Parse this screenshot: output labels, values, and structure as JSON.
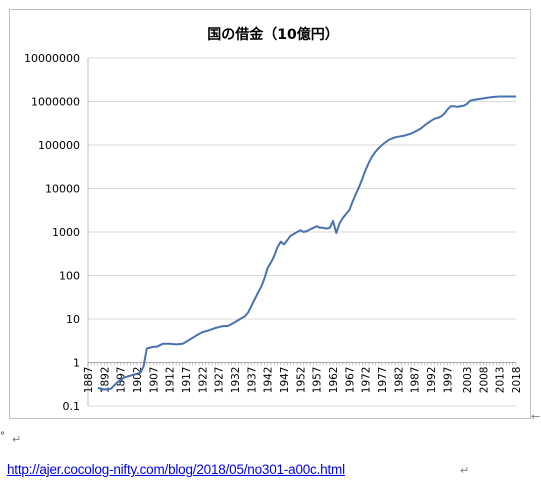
{
  "chart_data": {
    "type": "line",
    "title": "国の借金（10億円）",
    "y_scale": "log",
    "ylim": [
      0.1,
      10000000
    ],
    "y_tick_labels": [
      "10000000",
      "1000000",
      "100000",
      "10000",
      "1000",
      "100",
      "10",
      "1",
      "0.1"
    ],
    "y_tick_values": [
      10000000,
      1000000,
      100000,
      10000,
      1000,
      100,
      10,
      1,
      0.1
    ],
    "xlim": [
      1887,
      2018
    ],
    "x_tick_labels": [
      "1887",
      "1892",
      "1897",
      "1902",
      "1907",
      "1912",
      "1917",
      "1922",
      "1927",
      "1932",
      "1937",
      "1942",
      "1947",
      "1952",
      "1957",
      "1962",
      "1967",
      "1972",
      "1977",
      "1982",
      "1987",
      "1992",
      "1997",
      "2003",
      "2008",
      "2013",
      "2018"
    ],
    "x_tick_values": [
      1887,
      1892,
      1897,
      1902,
      1907,
      1912,
      1917,
      1922,
      1927,
      1932,
      1937,
      1942,
      1947,
      1952,
      1957,
      1962,
      1967,
      1972,
      1977,
      1982,
      1987,
      1992,
      1997,
      2003,
      2008,
      2013,
      2018
    ],
    "grid": "horizontal",
    "legend": "none",
    "line_color": "#4a72b0",
    "series": [
      {
        "x": [
          1890,
          1892,
          1894,
          1896,
          1898,
          1900,
          1902,
          1903,
          1904,
          1905,
          1906,
          1907,
          1908,
          1910,
          1912,
          1914,
          1916,
          1918,
          1920,
          1922,
          1924,
          1926,
          1928,
          1930,
          1932,
          1934,
          1935,
          1936,
          1937,
          1938,
          1939,
          1940,
          1941,
          1942,
          1943,
          1944,
          1945,
          1946,
          1947,
          1948,
          1949,
          1950,
          1951,
          1952,
          1953,
          1954,
          1955,
          1956,
          1957,
          1958,
          1959,
          1960,
          1961,
          1962,
          1963,
          1964,
          1965,
          1966,
          1967,
          1968,
          1969,
          1970,
          1971,
          1972,
          1973,
          1974,
          1975,
          1976,
          1977,
          1978,
          1979,
          1980,
          1981,
          1982,
          1983,
          1984,
          1985,
          1986,
          1987,
          1988,
          1989,
          1990,
          1991,
          1992,
          1993,
          1994,
          1995,
          1996,
          1997,
          1998,
          1999,
          2000,
          2001,
          2002,
          2003,
          2004,
          2005,
          2006,
          2007,
          2008,
          2009,
          2010,
          2011,
          2012,
          2013,
          2014,
          2015,
          2016,
          2017,
          2018
        ],
        "y": [
          0.26,
          0.24,
          0.25,
          0.35,
          0.45,
          0.5,
          0.55,
          0.58,
          0.8,
          2.1,
          2.2,
          2.3,
          2.3,
          2.7,
          2.7,
          2.6,
          2.7,
          3.3,
          4.1,
          5.0,
          5.5,
          6.2,
          6.8,
          7.0,
          8.5,
          10.5,
          11.5,
          14,
          20,
          28,
          40,
          55,
          85,
          150,
          200,
          280,
          450,
          600,
          520,
          650,
          820,
          900,
          1000,
          1100,
          1000,
          1050,
          1150,
          1250,
          1350,
          1250,
          1250,
          1200,
          1250,
          1800,
          950,
          1600,
          2100,
          2600,
          3200,
          5000,
          7500,
          11000,
          17000,
          27000,
          40000,
          55000,
          70000,
          85000,
          100000,
          115000,
          130000,
          140000,
          150000,
          155000,
          160000,
          165000,
          175000,
          185000,
          200000,
          220000,
          245000,
          280000,
          320000,
          360000,
          400000,
          420000,
          450000,
          520000,
          650000,
          780000,
          780000,
          750000,
          780000,
          800000,
          880000,
          1050000,
          1080000,
          1120000,
          1150000,
          1180000,
          1210000,
          1240000,
          1270000,
          1290000,
          1300000,
          1300000,
          1300000,
          1300000,
          1300000,
          1300000
        ]
      }
    ]
  },
  "marks": {
    "return_char": "↵",
    "left_arrow": "←",
    "degree_mark": "°"
  },
  "source": {
    "url_text": "http://ajer.cocolog-nifty.com/blog/2018/05/no301-a00c.html"
  }
}
